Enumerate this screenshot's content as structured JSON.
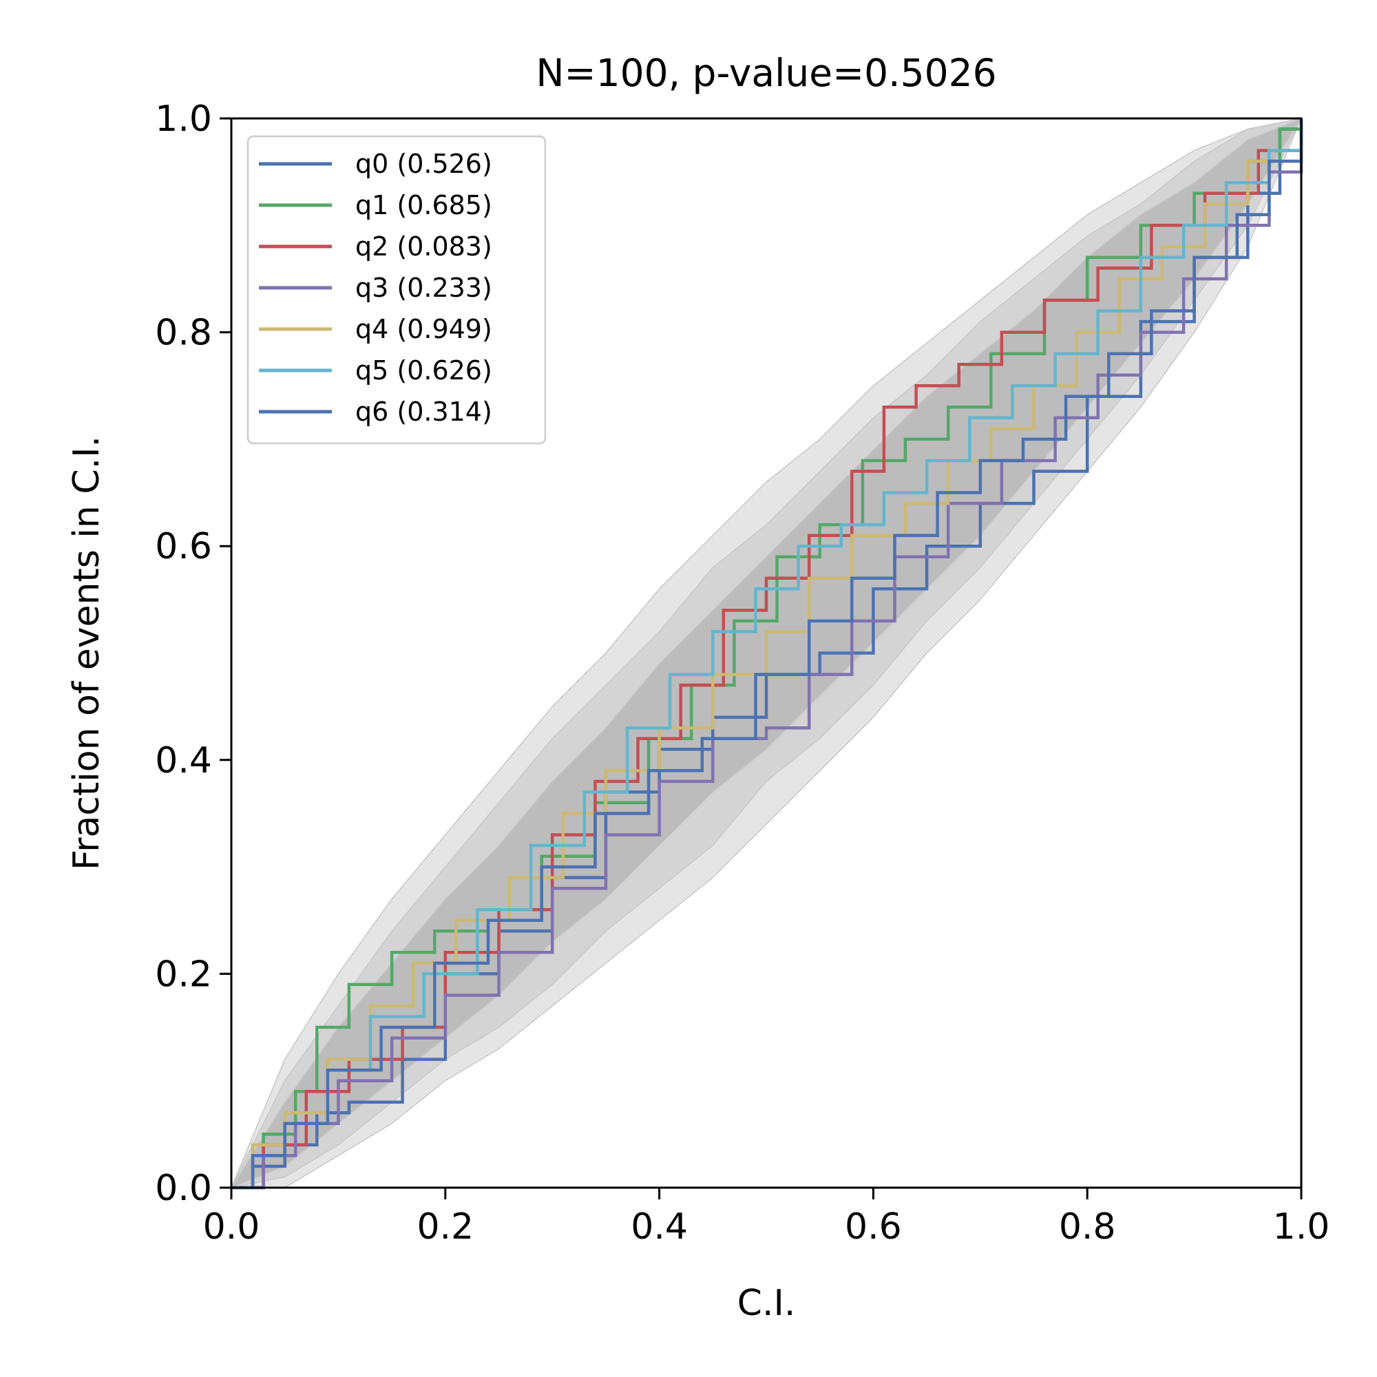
{
  "chart_data": {
    "type": "line",
    "title": "N=100, p-value=0.5026",
    "xlabel": "C.I.",
    "ylabel": "Fraction of events in C.I.",
    "xlim": [
      0,
      1
    ],
    "ylim": [
      0,
      1
    ],
    "xticks": [
      "0.0",
      "0.2",
      "0.4",
      "0.6",
      "0.8",
      "1.0"
    ],
    "yticks": [
      "0.0",
      "0.2",
      "0.4",
      "0.6",
      "0.8",
      "1.0"
    ],
    "grid": false,
    "legend_position": "top-left",
    "confidence_bands": [
      {
        "level": "outer",
        "color": "#e5e5e5",
        "x": [
          0,
          0.05,
          0.1,
          0.15,
          0.2,
          0.25,
          0.3,
          0.35,
          0.4,
          0.45,
          0.5,
          0.55,
          0.6,
          0.65,
          0.7,
          0.75,
          0.8,
          0.85,
          0.9,
          0.95,
          1.0
        ],
        "upper": [
          0,
          0.12,
          0.2,
          0.27,
          0.33,
          0.39,
          0.45,
          0.5,
          0.56,
          0.61,
          0.66,
          0.7,
          0.75,
          0.79,
          0.83,
          0.87,
          0.91,
          0.94,
          0.97,
          0.99,
          1.0
        ],
        "lower": [
          0,
          0.0,
          0.03,
          0.06,
          0.1,
          0.13,
          0.17,
          0.21,
          0.25,
          0.29,
          0.34,
          0.39,
          0.44,
          0.5,
          0.55,
          0.61,
          0.67,
          0.73,
          0.8,
          0.88,
          1.0
        ]
      },
      {
        "level": "middle",
        "color": "#d4d4d4",
        "x": [
          0,
          0.05,
          0.1,
          0.15,
          0.2,
          0.25,
          0.3,
          0.35,
          0.4,
          0.45,
          0.5,
          0.55,
          0.6,
          0.65,
          0.7,
          0.75,
          0.8,
          0.85,
          0.9,
          0.95,
          1.0
        ],
        "upper": [
          0,
          0.1,
          0.17,
          0.24,
          0.3,
          0.36,
          0.42,
          0.47,
          0.52,
          0.58,
          0.62,
          0.67,
          0.72,
          0.76,
          0.81,
          0.85,
          0.89,
          0.92,
          0.96,
          0.99,
          1.0
        ],
        "lower": [
          0,
          0.01,
          0.04,
          0.08,
          0.12,
          0.15,
          0.19,
          0.24,
          0.28,
          0.32,
          0.38,
          0.42,
          0.47,
          0.53,
          0.58,
          0.64,
          0.7,
          0.76,
          0.83,
          0.9,
          1.0
        ]
      },
      {
        "level": "inner",
        "color": "#bcbcbc",
        "x": [
          0,
          0.05,
          0.1,
          0.15,
          0.2,
          0.25,
          0.3,
          0.35,
          0.4,
          0.45,
          0.5,
          0.55,
          0.6,
          0.65,
          0.7,
          0.75,
          0.8,
          0.85,
          0.9,
          0.95,
          1.0
        ],
        "upper": [
          0,
          0.08,
          0.15,
          0.21,
          0.27,
          0.32,
          0.38,
          0.43,
          0.49,
          0.54,
          0.59,
          0.64,
          0.69,
          0.74,
          0.78,
          0.82,
          0.87,
          0.91,
          0.94,
          0.98,
          1.0
        ],
        "lower": [
          0,
          0.02,
          0.06,
          0.1,
          0.14,
          0.18,
          0.23,
          0.27,
          0.32,
          0.37,
          0.41,
          0.46,
          0.51,
          0.56,
          0.61,
          0.67,
          0.73,
          0.79,
          0.85,
          0.92,
          1.0
        ]
      }
    ],
    "series": [
      {
        "name": "q0 (0.526)",
        "color": "#4c72b0",
        "x": [
          0,
          0.02,
          0.05,
          0.08,
          0.11,
          0.16,
          0.2,
          0.25,
          0.3,
          0.35,
          0.4,
          0.45,
          0.5,
          0.55,
          0.6,
          0.65,
          0.7,
          0.75,
          0.8,
          0.85,
          0.9,
          0.95,
          0.98,
          1.0
        ],
        "y": [
          0,
          0.02,
          0.04,
          0.07,
          0.08,
          0.12,
          0.2,
          0.24,
          0.29,
          0.37,
          0.41,
          0.44,
          0.48,
          0.5,
          0.56,
          0.6,
          0.64,
          0.67,
          0.74,
          0.81,
          0.87,
          0.93,
          0.99,
          1.0
        ]
      },
      {
        "name": "q1 (0.685)",
        "color": "#55a868",
        "x": [
          0,
          0.03,
          0.06,
          0.08,
          0.11,
          0.15,
          0.19,
          0.24,
          0.29,
          0.34,
          0.39,
          0.43,
          0.47,
          0.51,
          0.55,
          0.59,
          0.63,
          0.67,
          0.71,
          0.76,
          0.8,
          0.85,
          0.9,
          0.95,
          0.98,
          1.0
        ],
        "y": [
          0,
          0.05,
          0.09,
          0.15,
          0.19,
          0.22,
          0.24,
          0.25,
          0.31,
          0.36,
          0.42,
          0.47,
          0.53,
          0.59,
          0.62,
          0.68,
          0.7,
          0.73,
          0.78,
          0.83,
          0.87,
          0.9,
          0.93,
          0.96,
          0.99,
          1.0
        ]
      },
      {
        "name": "q2 (0.083)",
        "color": "#c44e52",
        "x": [
          0,
          0.03,
          0.07,
          0.11,
          0.16,
          0.2,
          0.25,
          0.3,
          0.34,
          0.38,
          0.42,
          0.46,
          0.5,
          0.54,
          0.58,
          0.61,
          0.64,
          0.68,
          0.72,
          0.76,
          0.81,
          0.86,
          0.91,
          0.96,
          1.0
        ],
        "y": [
          0,
          0.04,
          0.09,
          0.12,
          0.15,
          0.22,
          0.26,
          0.33,
          0.38,
          0.42,
          0.47,
          0.54,
          0.57,
          0.61,
          0.67,
          0.73,
          0.75,
          0.77,
          0.8,
          0.83,
          0.86,
          0.9,
          0.93,
          0.97,
          1.0
        ]
      },
      {
        "name": "q3 (0.233)",
        "color": "#8172b2",
        "x": [
          0,
          0.03,
          0.06,
          0.1,
          0.15,
          0.2,
          0.25,
          0.3,
          0.35,
          0.4,
          0.45,
          0.5,
          0.54,
          0.58,
          0.62,
          0.67,
          0.72,
          0.77,
          0.81,
          0.85,
          0.89,
          0.93,
          0.97,
          1.0
        ],
        "y": [
          0,
          0.03,
          0.06,
          0.1,
          0.14,
          0.18,
          0.22,
          0.28,
          0.33,
          0.38,
          0.42,
          0.43,
          0.48,
          0.53,
          0.59,
          0.64,
          0.68,
          0.72,
          0.76,
          0.8,
          0.85,
          0.9,
          0.95,
          1.0
        ]
      },
      {
        "name": "q4 (0.949)",
        "color": "#ccb974",
        "x": [
          0,
          0.02,
          0.05,
          0.09,
          0.13,
          0.17,
          0.21,
          0.26,
          0.31,
          0.35,
          0.4,
          0.45,
          0.5,
          0.54,
          0.58,
          0.63,
          0.67,
          0.71,
          0.75,
          0.79,
          0.83,
          0.87,
          0.91,
          0.95,
          1.0
        ],
        "y": [
          0,
          0.04,
          0.07,
          0.12,
          0.17,
          0.21,
          0.25,
          0.29,
          0.35,
          0.39,
          0.43,
          0.48,
          0.52,
          0.57,
          0.61,
          0.64,
          0.68,
          0.71,
          0.75,
          0.8,
          0.85,
          0.88,
          0.92,
          0.96,
          1.0
        ]
      },
      {
        "name": "q5 (0.626)",
        "color": "#64b5cd",
        "x": [
          0,
          0.02,
          0.05,
          0.09,
          0.13,
          0.18,
          0.23,
          0.28,
          0.33,
          0.37,
          0.41,
          0.45,
          0.49,
          0.53,
          0.57,
          0.61,
          0.65,
          0.69,
          0.73,
          0.77,
          0.81,
          0.85,
          0.89,
          0.93,
          0.97,
          1.0
        ],
        "y": [
          0,
          0.03,
          0.06,
          0.11,
          0.16,
          0.2,
          0.26,
          0.32,
          0.37,
          0.43,
          0.48,
          0.52,
          0.56,
          0.6,
          0.62,
          0.65,
          0.68,
          0.72,
          0.75,
          0.78,
          0.82,
          0.87,
          0.9,
          0.94,
          0.97,
          1.0
        ]
      },
      {
        "name": "q6 (0.314)",
        "color": "#4c72b0",
        "x": [
          0,
          0.02,
          0.05,
          0.09,
          0.14,
          0.19,
          0.24,
          0.29,
          0.34,
          0.39,
          0.44,
          0.49,
          0.54,
          0.58,
          0.62,
          0.66,
          0.7,
          0.74,
          0.78,
          0.82,
          0.86,
          0.9,
          0.94,
          0.97,
          1.0
        ],
        "y": [
          0,
          0.03,
          0.06,
          0.11,
          0.15,
          0.21,
          0.25,
          0.3,
          0.35,
          0.39,
          0.42,
          0.48,
          0.53,
          0.57,
          0.61,
          0.65,
          0.68,
          0.7,
          0.74,
          0.78,
          0.82,
          0.87,
          0.91,
          0.96,
          1.0
        ]
      }
    ]
  }
}
